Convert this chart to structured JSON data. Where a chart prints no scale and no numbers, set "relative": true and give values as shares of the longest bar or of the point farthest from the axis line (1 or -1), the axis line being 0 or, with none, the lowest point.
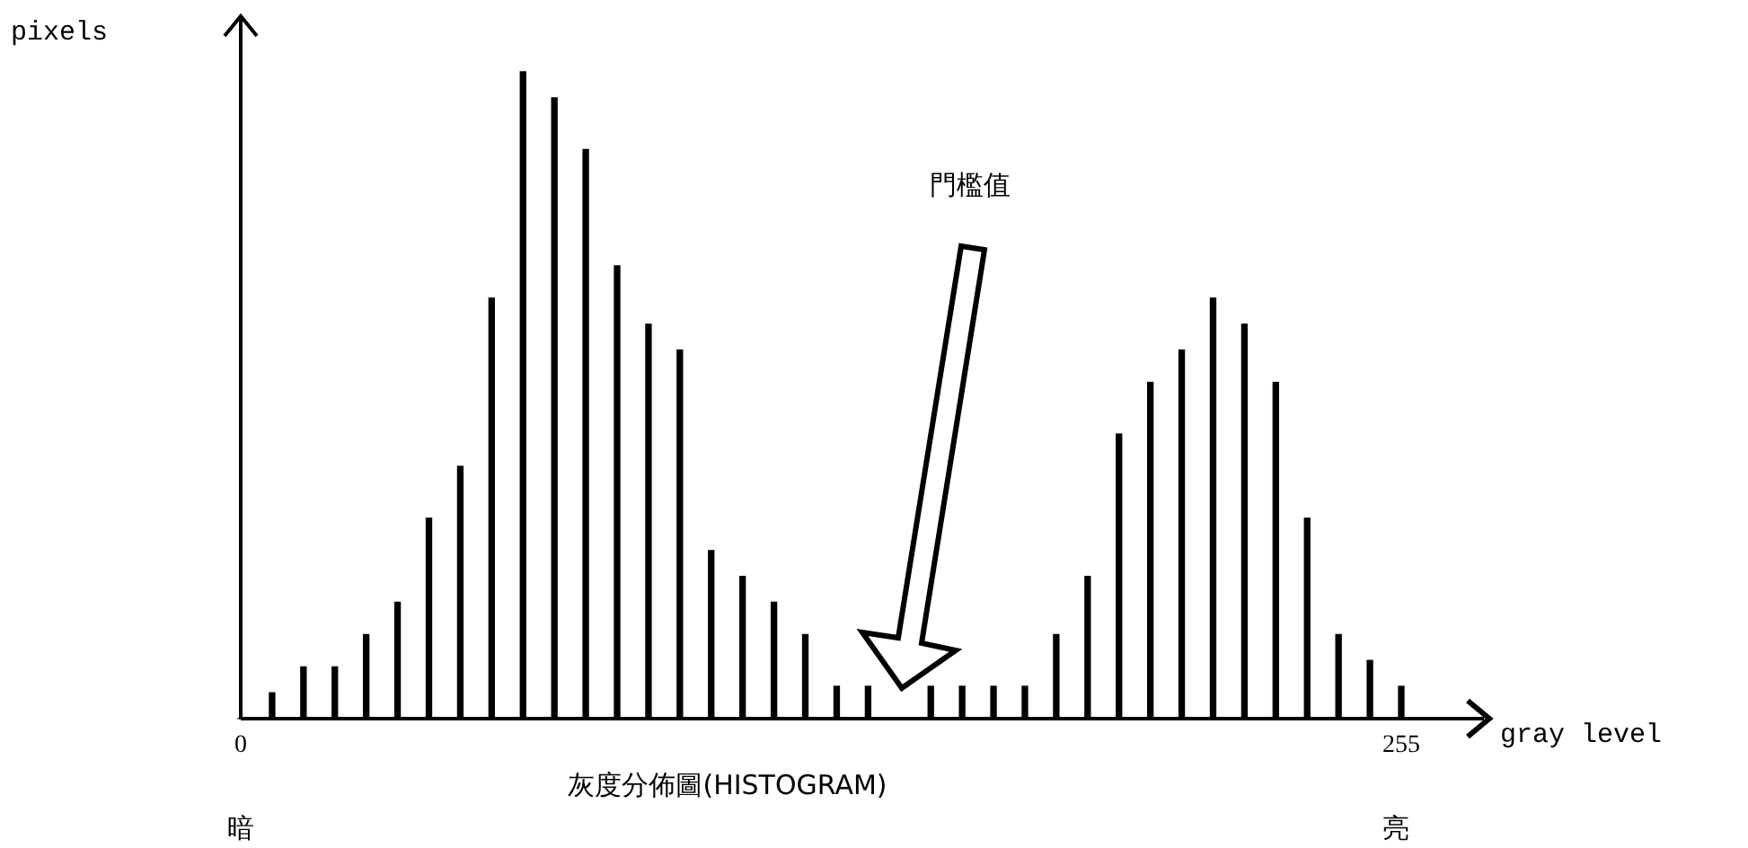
{
  "chart_data": {
    "type": "bar",
    "relative": true,
    "color": "#000000",
    "xlabel": "gray level",
    "ylabel": "pixels",
    "categories": [
      "0",
      null,
      null,
      null,
      null,
      null,
      null,
      null,
      null,
      null,
      null,
      null,
      null,
      null,
      null,
      null,
      null,
      null,
      null,
      null,
      null,
      null,
      null,
      null,
      null,
      null,
      null,
      null,
      null,
      null,
      null,
      null,
      null,
      null,
      null,
      null,
      null,
      "255"
    ],
    "values": [
      0,
      0.04,
      0.08,
      0.08,
      0.13,
      0.18,
      0.31,
      0.39,
      0.65,
      1,
      0.96,
      0.88,
      0.7,
      0.61,
      0.57,
      0.26,
      0.22,
      0.18,
      0.13,
      0.05,
      0.05,
      null,
      0.05,
      0.05,
      0.05,
      0.05,
      0.13,
      0.22,
      0.44,
      0.52,
      0.57,
      0.65,
      0.61,
      0.52,
      0.31,
      0.13,
      0.09,
      0.05
    ],
    "annotations": [
      "門檻值",
      "灰度分佈圖(HISTOGRAM)",
      "暗",
      "亮"
    ]
  }
}
